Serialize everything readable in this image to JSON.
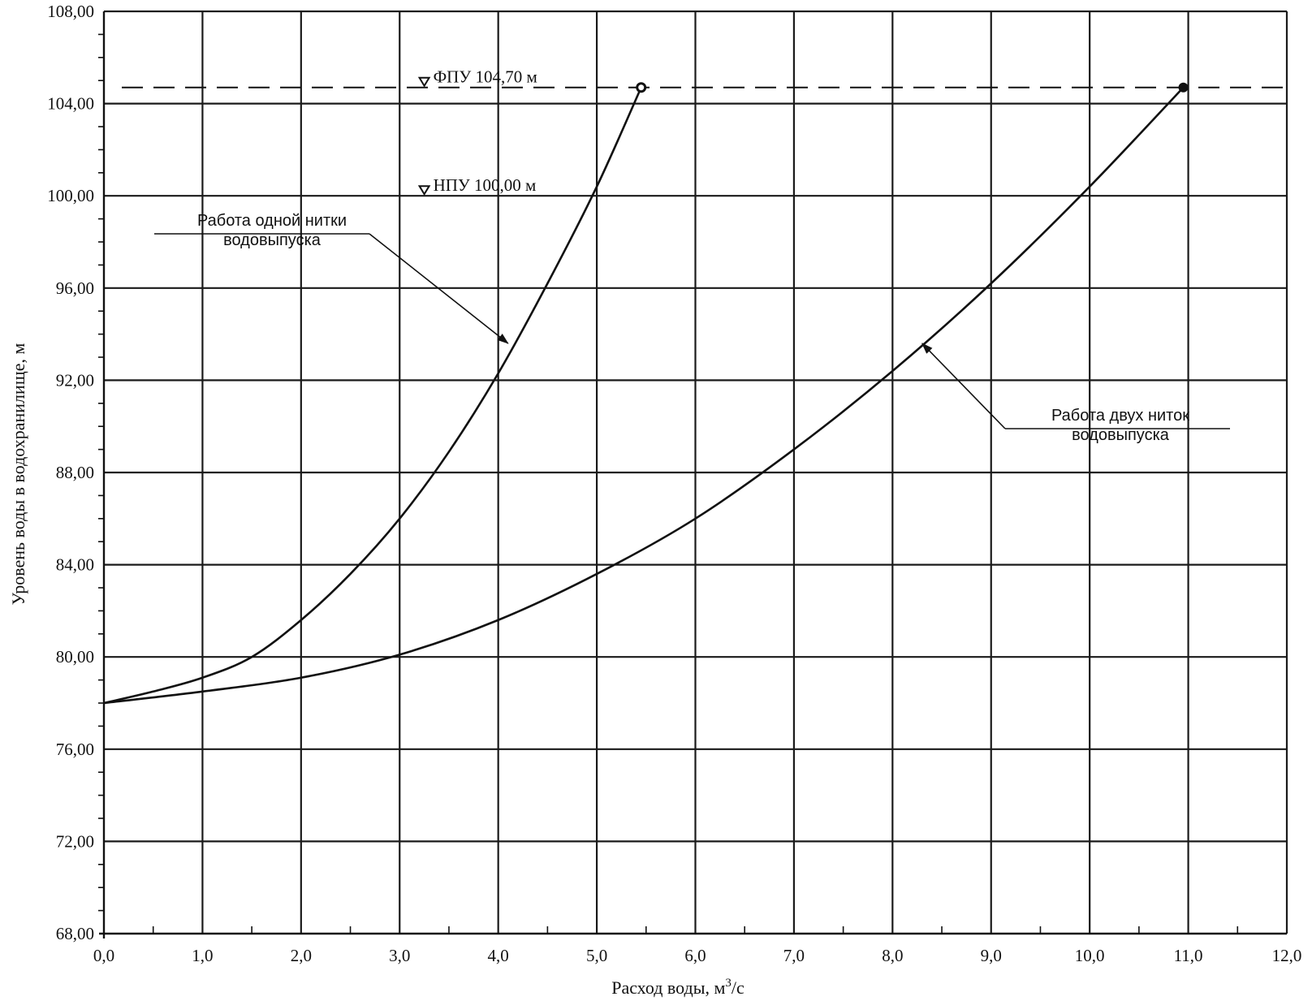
{
  "chart_data": {
    "type": "line",
    "title": "",
    "xlabel": "Расход воды, м",
    "xlabel_sup": "3",
    "xlabel_suffix": "/с",
    "ylabel": "Уровень воды в водохранилище, м",
    "xlim": [
      0,
      12
    ],
    "ylim": [
      68,
      108
    ],
    "grid": true,
    "x_ticks": [
      0,
      1,
      2,
      3,
      4,
      5,
      6,
      7,
      8,
      9,
      10,
      11,
      12
    ],
    "x_tick_labels": [
      "0,0",
      "1,0",
      "2,0",
      "3,0",
      "4,0",
      "5,0",
      "6,0",
      "7,0",
      "8,0",
      "9,0",
      "10,0",
      "11,0",
      "12,0"
    ],
    "y_ticks": [
      68,
      72,
      76,
      80,
      84,
      88,
      92,
      96,
      100,
      104,
      108
    ],
    "y_tick_labels": [
      "68,00",
      "72,00",
      "76,00",
      "80,00",
      "84,00",
      "88,00",
      "92,00",
      "96,00",
      "100,00",
      "104,00",
      "108,00"
    ],
    "series": [
      {
        "name": "Работа одной нитки водовыпуска",
        "x": [
          0,
          0.5,
          1.0,
          1.5,
          2.0,
          2.5,
          3.0,
          3.5,
          4.0,
          4.5,
          5.0,
          5.45
        ],
        "y": [
          78.0,
          78.5,
          79.1,
          80.0,
          81.6,
          83.6,
          86.0,
          88.9,
          92.3,
          96.2,
          100.4,
          104.7
        ],
        "end_marker": true
      },
      {
        "name": "Работа двух ниток водовыпуска",
        "x": [
          0,
          1.0,
          2.0,
          3.0,
          4.0,
          5.0,
          6.0,
          7.0,
          8.0,
          9.0,
          10.0,
          10.95
        ],
        "y": [
          78.0,
          78.5,
          79.1,
          80.1,
          81.6,
          83.6,
          86.0,
          89.0,
          92.4,
          96.2,
          100.4,
          104.7
        ]
      }
    ],
    "reference_lines": [
      {
        "label": "ФПУ 104,70 м",
        "y": 104.7,
        "dashed": true
      },
      {
        "label": "НПУ 100,00 м",
        "y": 100.0,
        "dashed": false
      }
    ],
    "annotations": [
      {
        "lines": [
          "Работа одной нитки",
          "водовыпуска"
        ],
        "points_to_series": 0,
        "target_x": 4.1,
        "target_y": 93.6
      },
      {
        "lines": [
          "Работа двух ниток",
          "водовыпуска"
        ],
        "points_to_series": 1,
        "target_x": 8.3,
        "target_y": 93.6
      }
    ]
  }
}
